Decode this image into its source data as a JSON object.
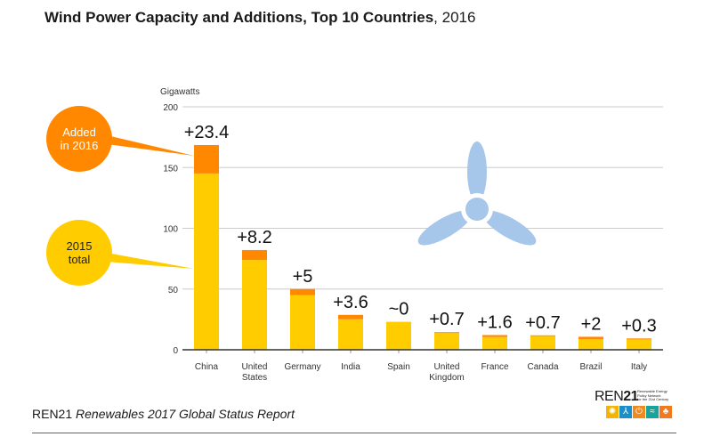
{
  "title": {
    "bold": "Wind Power Capacity and Additions, Top 10 Countries",
    "sep": ",",
    "year": "2016"
  },
  "colors": {
    "total_2015": "#FFCC00",
    "added_2016": "#FF8800",
    "turbine": "#A7C7EA",
    "gridline": "#cccccc",
    "axis": "#333333"
  },
  "callouts": {
    "added": {
      "line1": "Added",
      "line2": "in 2016"
    },
    "total": {
      "line1": "2015",
      "line2": "total"
    }
  },
  "chart_data": {
    "type": "bar",
    "stacked": true,
    "title": "Wind Power Capacity and Additions, Top 10 Countries, 2016",
    "ylabel": "Gigawatts",
    "xlabel": "",
    "ylim": [
      0,
      200
    ],
    "yticks": [
      0,
      50,
      100,
      150,
      200
    ],
    "grid": true,
    "categories": [
      [
        "China"
      ],
      [
        "United",
        "States"
      ],
      [
        "Germany"
      ],
      [
        "India"
      ],
      [
        "Spain"
      ],
      [
        "United",
        "Kingdom"
      ],
      [
        "France"
      ],
      [
        "Canada"
      ],
      [
        "Brazil"
      ],
      [
        "Italy"
      ]
    ],
    "series": [
      {
        "name": "2015 total",
        "values": [
          145.1,
          73.9,
          45.0,
          25.1,
          23.0,
          13.8,
          10.5,
          11.2,
          8.7,
          9.0
        ]
      },
      {
        "name": "Added in 2016",
        "values": [
          23.4,
          8.2,
          5.0,
          3.6,
          0.0,
          0.7,
          1.6,
          0.7,
          2.0,
          0.3
        ]
      }
    ],
    "data_labels": [
      "+23.4",
      "+8.2",
      "+5",
      "+3.6",
      "~0",
      "+0.7",
      "+1.6",
      "+0.7",
      "+2",
      "+0.3"
    ],
    "legend": "left callouts"
  },
  "footer": {
    "org": "REN21",
    "report": "Renewables 2017 Global Status Report"
  },
  "logo": {
    "mark": "REN21",
    "mark_prefix": "REN",
    "mark_suffix": "21",
    "tagline_lines": [
      "Renewable Energy",
      "Policy Network",
      "for the 21st Century"
    ],
    "icons": [
      {
        "name": "sun-icon",
        "glyph": "✺",
        "color": "#F5B400"
      },
      {
        "name": "wind-icon",
        "glyph": "⅄",
        "color": "#1D8FC8"
      },
      {
        "name": "power-icon",
        "glyph": "⏻",
        "color": "#F08A1D"
      },
      {
        "name": "water-icon",
        "glyph": "≈",
        "color": "#1AA39A"
      },
      {
        "name": "leaf-icon",
        "glyph": "♣",
        "color": "#F07A1D"
      }
    ]
  }
}
